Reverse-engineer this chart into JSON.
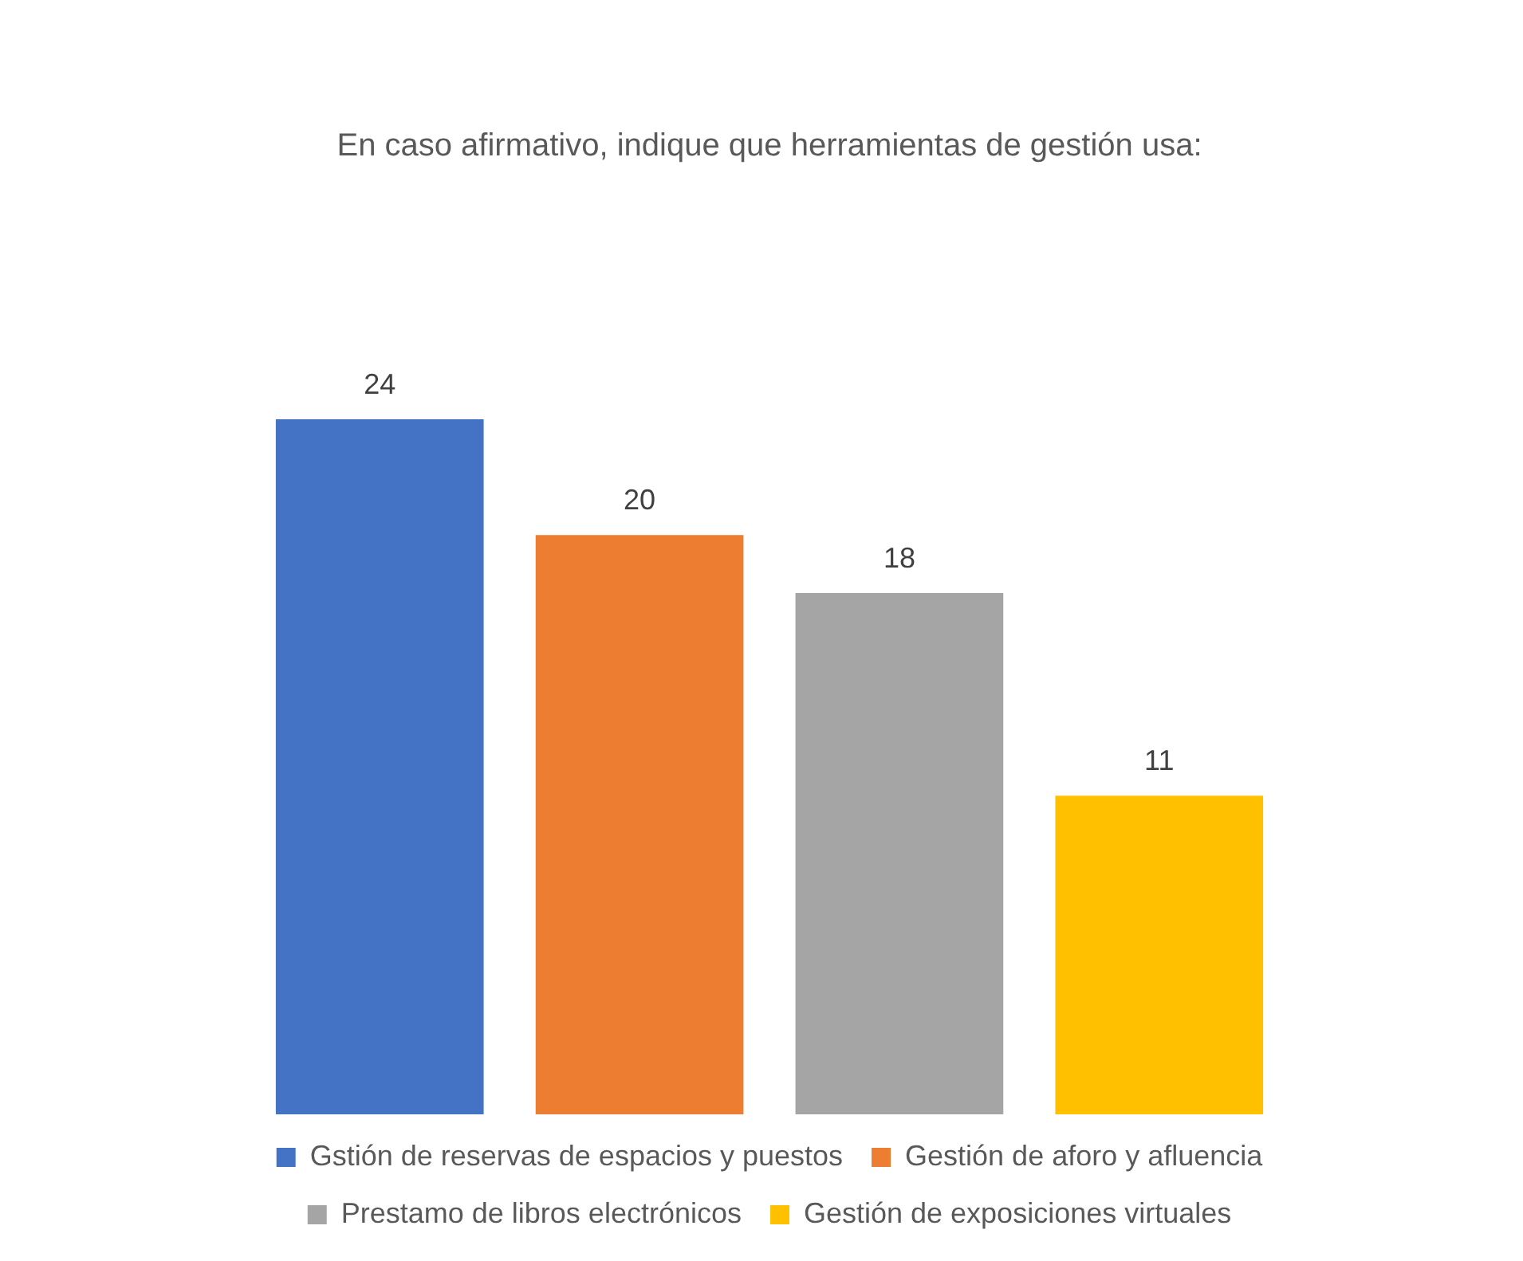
{
  "chart_data": {
    "type": "bar",
    "title": "En caso afirmativo, indique que herramientas de gestión usa:",
    "categories": [
      null
    ],
    "series": [
      {
        "name": "Gstión de reservas de espacios y puestos",
        "color": "#4472c4",
        "values": [
          24
        ]
      },
      {
        "name": "Gestión de aforo y afluencia",
        "color": "#ed7d31",
        "values": [
          20
        ]
      },
      {
        "name": "Prestamo de libros electrónicos",
        "color": "#a5a5a5",
        "values": [
          18
        ]
      },
      {
        "name": "Gestión de exposiciones virtuales",
        "color": "#ffc000",
        "values": [
          11
        ]
      }
    ],
    "data_labels": true,
    "legend": "bottom"
  }
}
